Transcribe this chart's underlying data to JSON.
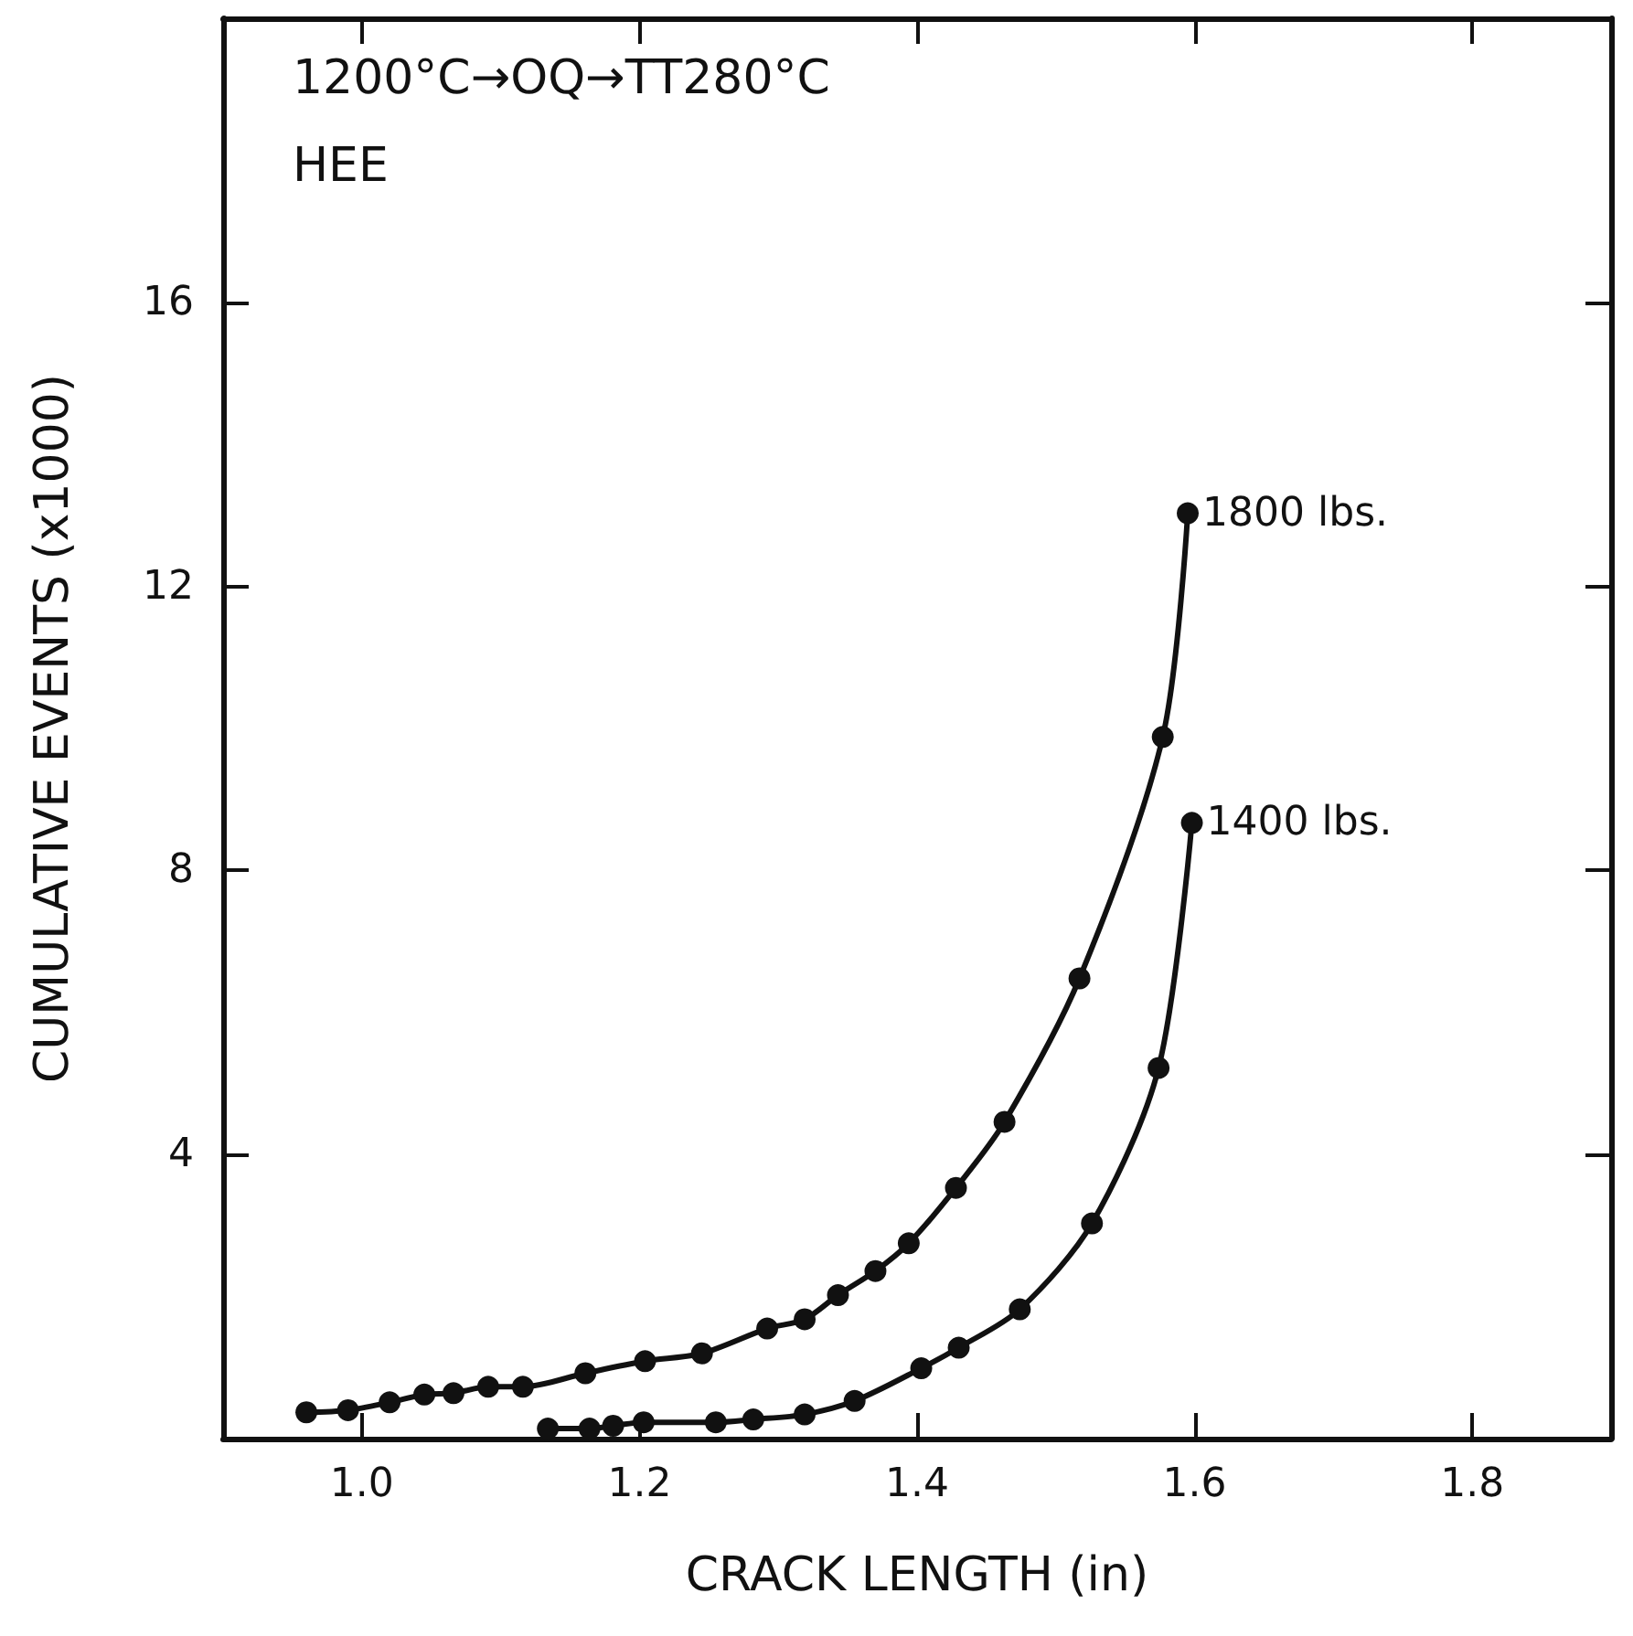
{
  "chart_data": {
    "type": "line",
    "xlabel": "CRACK LENGTH (in)",
    "ylabel": "CUMULATIVE EVENTS (x1000)",
    "annotations": [
      "1200°C→OQ→TT280°C",
      "HEE"
    ],
    "xlim": [
      0.9,
      1.9
    ],
    "xticks": [
      {
        "value": 1,
        "label": "1.0"
      },
      1.2,
      1.4,
      1.6,
      1.8
    ],
    "ylim": [
      0,
      20
    ],
    "yticks": [
      4,
      8,
      12,
      16
    ],
    "marker": "circle",
    "line_style": "solid",
    "grid": false,
    "legend": false,
    "series": [
      {
        "name": "1800 lbs.",
        "color": "#111111",
        "x": [
          0.96,
          0.99,
          1.02,
          1.045,
          1.066,
          1.091,
          1.116,
          1.161,
          1.204,
          1.245,
          1.292,
          1.319,
          1.343,
          1.37,
          1.394,
          1.428,
          1.463,
          1.517,
          1.577,
          1.595
        ],
        "values": [
          0.37,
          0.4,
          0.51,
          0.62,
          0.64,
          0.73,
          0.73,
          0.92,
          1.09,
          1.2,
          1.55,
          1.68,
          2.02,
          2.36,
          2.75,
          3.53,
          4.46,
          6.48,
          9.88,
          13.03
        ]
      },
      {
        "name": "1400 lbs.",
        "color": "#111111",
        "x": [
          1.134,
          1.164,
          1.181,
          1.203,
          1.255,
          1.282,
          1.319,
          1.355,
          1.403,
          1.43,
          1.474,
          1.526,
          1.574,
          1.598
        ],
        "values": [
          0.14,
          0.14,
          0.18,
          0.23,
          0.23,
          0.27,
          0.34,
          0.53,
          0.99,
          1.28,
          1.82,
          3.03,
          5.22,
          8.67
        ]
      }
    ]
  }
}
